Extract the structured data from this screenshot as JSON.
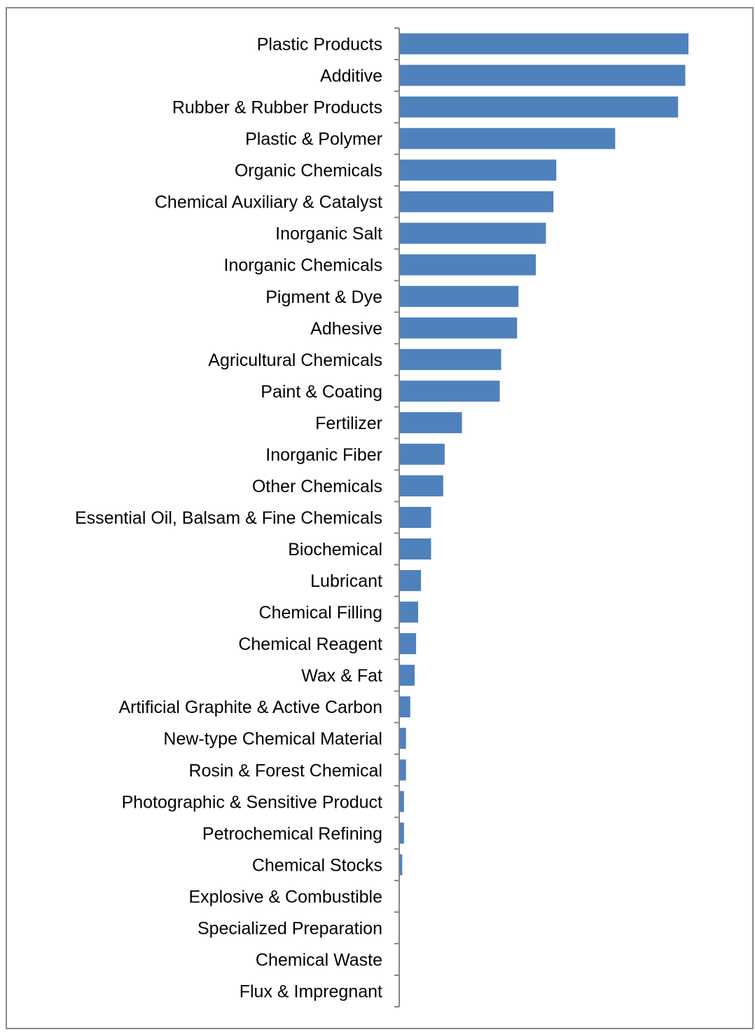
{
  "colors": {
    "bar": "#4f81bd",
    "axis": "#868686",
    "border": "#8a8a8a"
  },
  "chart_data": {
    "type": "bar",
    "orientation": "horizontal",
    "categories": [
      "Plastic Products",
      "Additive",
      "Rubber & Rubber Products",
      "Plastic & Polymer",
      "Organic Chemicals",
      "Chemical Auxiliary & Catalyst",
      "Inorganic Salt",
      "Inorganic Chemicals",
      "Pigment & Dye",
      "Adhesive",
      "Agricultural Chemicals",
      "Paint & Coating",
      "Fertilizer",
      "Inorganic Fiber",
      "Other Chemicals",
      "Essential Oil, Balsam & Fine Chemicals",
      "Biochemical",
      "Lubricant",
      "Chemical Filling",
      "Chemical Reagent",
      "Wax & Fat",
      "Artificial Graphite & Active Carbon",
      "New-type Chemical Material",
      "Rosin & Forest Chemical",
      "Photographic & Sensitive Product",
      "Petrochemical Refining",
      "Chemical Stocks",
      "Explosive & Combustible",
      "Specialized Preparation",
      "Chemical Waste",
      "Flux & Impregnant"
    ],
    "values": [
      100,
      98.9,
      96.4,
      74.6,
      54.2,
      53.2,
      50.6,
      47.1,
      41.1,
      40.6,
      35.1,
      34.6,
      21.5,
      15.5,
      15.0,
      10.8,
      10.8,
      7.3,
      6.3,
      5.6,
      5.1,
      3.6,
      2.1,
      2.1,
      1.4,
      1.4,
      0.8,
      0,
      0,
      0,
      0
    ],
    "xlim": [
      0,
      100
    ],
    "xlabel": "",
    "ylabel": "",
    "title": "",
    "grid": false,
    "legend": "none"
  }
}
